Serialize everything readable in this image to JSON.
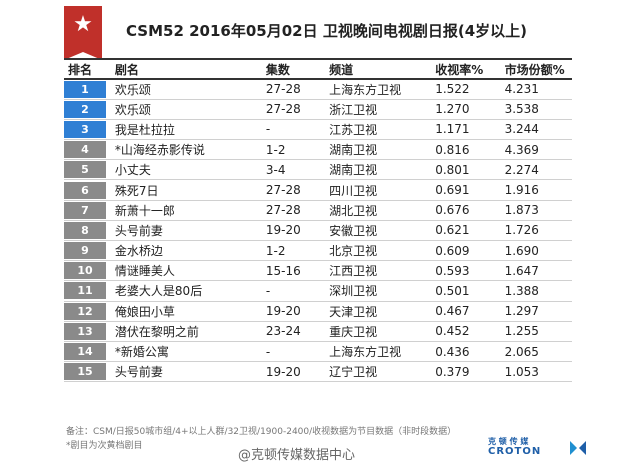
{
  "header": {
    "title": "CSM52  2016年05月02日  卫视晚间电视剧日报(4岁以上)",
    "badge_icon": "star-icon",
    "badge_color": "#c0302a"
  },
  "table": {
    "columns": [
      "排名",
      "剧名",
      "集数",
      "频道",
      "收视率%",
      "市场份额%"
    ],
    "rows": [
      {
        "rank": "1",
        "name": "欢乐颂",
        "episodes": "27-28",
        "channel": "上海东方卫视",
        "rating": "1.522",
        "share": "4.231"
      },
      {
        "rank": "2",
        "name": "欢乐颂",
        "episodes": "27-28",
        "channel": "浙江卫视",
        "rating": "1.270",
        "share": "3.538"
      },
      {
        "rank": "3",
        "name": "我是杜拉拉",
        "episodes": "-",
        "channel": "江苏卫视",
        "rating": "1.171",
        "share": "3.244"
      },
      {
        "rank": "4",
        "name": "*山海经赤影传说",
        "episodes": "1-2",
        "channel": "湖南卫视",
        "rating": "0.816",
        "share": "4.369"
      },
      {
        "rank": "5",
        "name": "小丈夫",
        "episodes": "3-4",
        "channel": "湖南卫视",
        "rating": "0.801",
        "share": "2.274"
      },
      {
        "rank": "6",
        "name": "殊死7日",
        "episodes": "27-28",
        "channel": "四川卫视",
        "rating": "0.691",
        "share": "1.916"
      },
      {
        "rank": "7",
        "name": "新萧十一郎",
        "episodes": "27-28",
        "channel": "湖北卫视",
        "rating": "0.676",
        "share": "1.873"
      },
      {
        "rank": "8",
        "name": "头号前妻",
        "episodes": "19-20",
        "channel": "安徽卫视",
        "rating": "0.621",
        "share": "1.726"
      },
      {
        "rank": "9",
        "name": "金水桥边",
        "episodes": "1-2",
        "channel": "北京卫视",
        "rating": "0.609",
        "share": "1.690"
      },
      {
        "rank": "10",
        "name": "情谜睡美人",
        "episodes": "15-16",
        "channel": "江西卫视",
        "rating": "0.593",
        "share": "1.647"
      },
      {
        "rank": "11",
        "name": "老婆大人是80后",
        "episodes": "-",
        "channel": "深圳卫视",
        "rating": "0.501",
        "share": "1.388"
      },
      {
        "rank": "12",
        "name": "俺娘田小草",
        "episodes": "19-20",
        "channel": "天津卫视",
        "rating": "0.467",
        "share": "1.297"
      },
      {
        "rank": "13",
        "name": "潜伏在黎明之前",
        "episodes": "23-24",
        "channel": "重庆卫视",
        "rating": "0.452",
        "share": "1.255"
      },
      {
        "rank": "14",
        "name": "*新婚公寓",
        "episodes": "-",
        "channel": "上海东方卫视",
        "rating": "0.436",
        "share": "2.065"
      },
      {
        "rank": "15",
        "name": "头号前妻",
        "episodes": "19-20",
        "channel": "辽宁卫视",
        "rating": "0.379",
        "share": "1.053"
      }
    ],
    "top_rank_color": "#2f7fd4",
    "other_rank_color": "#8a8a8a"
  },
  "footer": {
    "note1": "备注：CSM/日报50城市组/4+以上人群/32卫视/1900-2400/收视数据为节目数据（非时段数据）",
    "note2": "*剧目为次黄档剧目",
    "watermark": "@克顿传媒数据中心",
    "logo_line1": "克 顿 传 媒",
    "logo_line2": "CROTON"
  }
}
